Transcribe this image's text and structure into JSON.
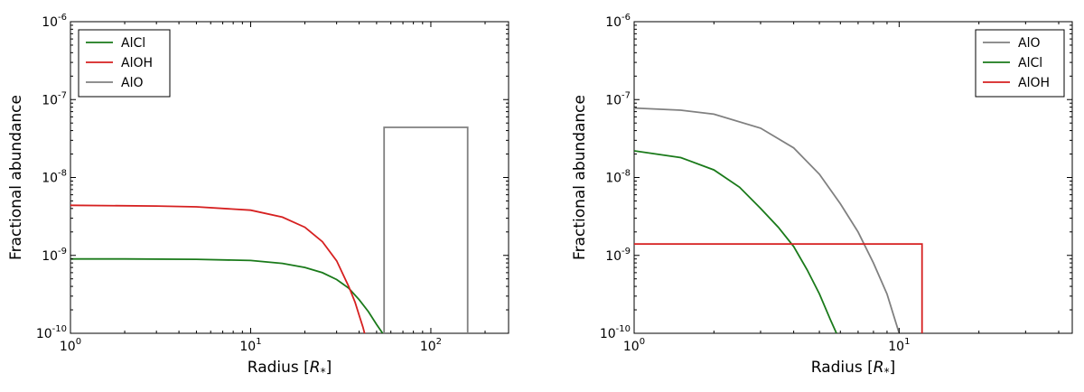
{
  "chart_data": [
    {
      "type": "line",
      "xscale": "log",
      "yscale": "log",
      "xlim": [
        1,
        270
      ],
      "ylim": [
        1e-10,
        1e-06
      ],
      "xlabel": "Radius [R*]",
      "ylabel": "Fractional abundance",
      "legend_position": "top-left",
      "x_ticks": [
        {
          "value": 1,
          "label": "10",
          "exp": "0"
        },
        {
          "value": 10,
          "label": "10",
          "exp": "1"
        },
        {
          "value": 100,
          "label": "10",
          "exp": "2"
        }
      ],
      "y_ticks": [
        {
          "value": 1e-10,
          "label": "10",
          "exp": "-10"
        },
        {
          "value": 1e-09,
          "label": "10",
          "exp": "-9"
        },
        {
          "value": 1e-08,
          "label": "10",
          "exp": "-8"
        },
        {
          "value": 1e-07,
          "label": "10",
          "exp": "-7"
        },
        {
          "value": 1e-06,
          "label": "10",
          "exp": "-6"
        }
      ],
      "series": [
        {
          "name": "AlCl",
          "color": "#1a7a1a",
          "x": [
            1,
            2,
            5,
            10,
            15,
            20,
            25,
            30,
            35,
            40,
            45,
            50,
            54
          ],
          "y": [
            9e-10,
            9e-10,
            8.9e-10,
            8.6e-10,
            7.9e-10,
            7e-10,
            6e-10,
            4.9e-10,
            3.8e-10,
            2.7e-10,
            1.9e-10,
            1.3e-10,
            1e-10
          ]
        },
        {
          "name": "AlOH",
          "color": "#d62020",
          "x": [
            1,
            3,
            5,
            10,
            15,
            20,
            25,
            30,
            35,
            38,
            40,
            42,
            44
          ],
          "y": [
            4.4e-09,
            4.3e-09,
            4.2e-09,
            3.8e-09,
            3.1e-09,
            2.3e-09,
            1.5e-09,
            8.5e-10,
            4e-10,
            2.5e-10,
            1.7e-10,
            1.2e-10,
            8e-11
          ]
        },
        {
          "name": "AlO",
          "color": "#808080",
          "x": [
            55,
            55,
            160,
            160
          ],
          "y": [
            1e-10,
            4.4e-08,
            4.4e-08,
            1e-10
          ]
        }
      ]
    },
    {
      "type": "line",
      "xscale": "log",
      "yscale": "log",
      "xlim": [
        1,
        45
      ],
      "ylim": [
        1e-10,
        1e-06
      ],
      "xlabel": "Radius [R*]",
      "ylabel": "Fractional abundance",
      "legend_position": "top-right",
      "x_ticks": [
        {
          "value": 1,
          "label": "10",
          "exp": "0"
        },
        {
          "value": 10,
          "label": "10",
          "exp": "1"
        }
      ],
      "y_ticks": [
        {
          "value": 1e-10,
          "label": "10",
          "exp": "-10"
        },
        {
          "value": 1e-09,
          "label": "10",
          "exp": "-9"
        },
        {
          "value": 1e-08,
          "label": "10",
          "exp": "-8"
        },
        {
          "value": 1e-07,
          "label": "10",
          "exp": "-7"
        },
        {
          "value": 1e-06,
          "label": "10",
          "exp": "-6"
        }
      ],
      "series": [
        {
          "name": "AlO",
          "color": "#808080",
          "x": [
            1,
            1.5,
            2,
            3,
            4,
            5,
            6,
            7,
            8,
            9,
            10
          ],
          "y": [
            7.8e-08,
            7.3e-08,
            6.5e-08,
            4.3e-08,
            2.4e-08,
            1.1e-08,
            4.6e-09,
            2e-09,
            8e-10,
            3.2e-10,
            1e-10
          ]
        },
        {
          "name": "AlCl",
          "color": "#1a7a1a",
          "x": [
            1,
            1.5,
            2,
            2.5,
            3,
            3.5,
            4,
            4.5,
            5,
            5.5,
            5.8
          ],
          "y": [
            2.2e-08,
            1.8e-08,
            1.25e-08,
            7.5e-09,
            4e-09,
            2.3e-09,
            1.3e-09,
            6.5e-10,
            3.2e-10,
            1.5e-10,
            1e-10
          ]
        },
        {
          "name": "AlOH",
          "color": "#d62020",
          "x": [
            1,
            12.2,
            12.2
          ],
          "y": [
            1.4e-09,
            1.4e-09,
            1e-10
          ]
        }
      ]
    }
  ]
}
